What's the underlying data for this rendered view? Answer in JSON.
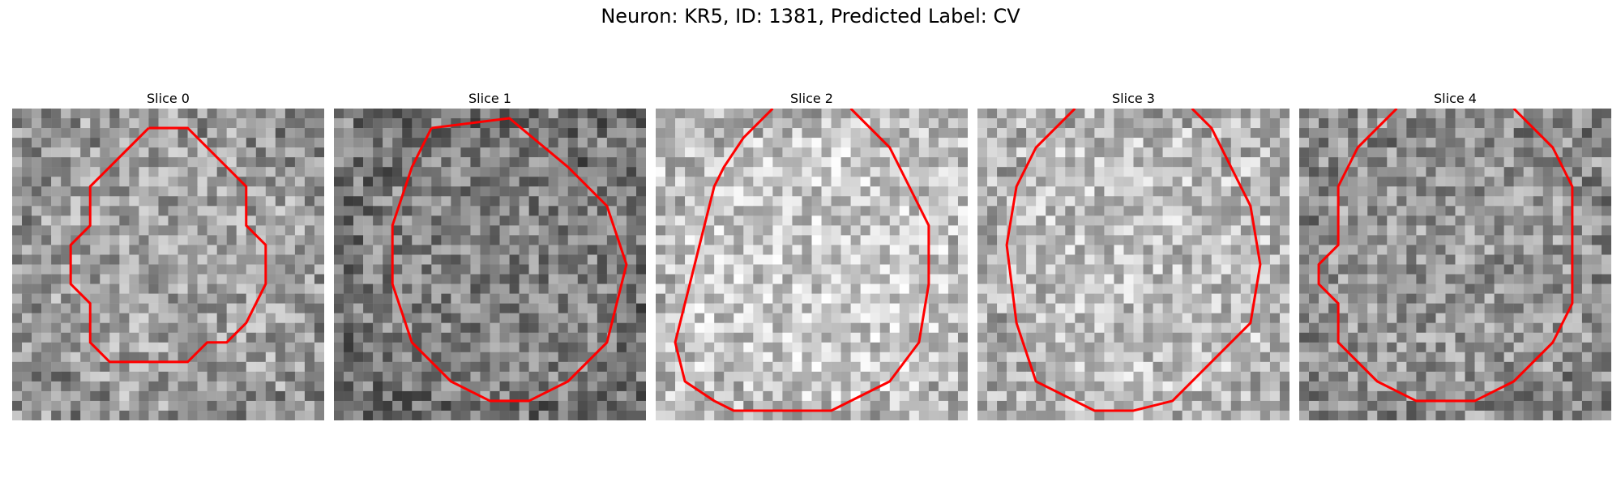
{
  "figure": {
    "title": "Neuron: KR5, ID: 1381, Predicted Label: CV"
  },
  "contour_color": "#ff0000",
  "panels": [
    {
      "title": "Slice 0",
      "seed": 11,
      "base_gray": 160,
      "contour": [
        [
          14,
          2
        ],
        [
          18,
          2
        ],
        [
          22,
          6
        ],
        [
          24,
          8
        ],
        [
          24,
          12
        ],
        [
          26,
          14
        ],
        [
          26,
          18
        ],
        [
          24,
          22
        ],
        [
          22,
          24
        ],
        [
          20,
          24
        ],
        [
          18,
          26
        ],
        [
          10,
          26
        ],
        [
          8,
          24
        ],
        [
          8,
          20
        ],
        [
          6,
          18
        ],
        [
          6,
          14
        ],
        [
          8,
          12
        ],
        [
          8,
          8
        ],
        [
          10,
          6
        ],
        [
          12,
          4
        ],
        [
          14,
          2
        ]
      ]
    },
    {
      "title": "Slice 1",
      "seed": 23,
      "base_gray": 130,
      "contour": [
        [
          10,
          2
        ],
        [
          18,
          1
        ],
        [
          24,
          6
        ],
        [
          28,
          10
        ],
        [
          30,
          16
        ],
        [
          28,
          24
        ],
        [
          24,
          28
        ],
        [
          20,
          30
        ],
        [
          16,
          30
        ],
        [
          12,
          28
        ],
        [
          8,
          24
        ],
        [
          6,
          18
        ],
        [
          6,
          12
        ],
        [
          8,
          6
        ],
        [
          10,
          2
        ]
      ]
    },
    {
      "title": "Slice 2",
      "seed": 37,
      "base_gray": 200,
      "contour": [
        [
          12,
          0
        ],
        [
          9,
          3
        ],
        [
          7,
          6
        ],
        [
          6,
          8
        ],
        [
          5,
          12
        ],
        [
          4,
          16
        ],
        [
          3,
          20
        ],
        [
          2,
          24
        ],
        [
          3,
          28
        ],
        [
          6,
          30
        ],
        [
          8,
          31
        ],
        [
          18,
          31
        ],
        [
          24,
          28
        ],
        [
          27,
          24
        ],
        [
          28,
          18
        ],
        [
          28,
          12
        ],
        [
          26,
          8
        ],
        [
          24,
          4
        ],
        [
          20,
          0
        ]
      ]
    },
    {
      "title": "Slice 3",
      "seed": 53,
      "base_gray": 190,
      "contour": [
        [
          10,
          0
        ],
        [
          6,
          4
        ],
        [
          4,
          8
        ],
        [
          3,
          14
        ],
        [
          4,
          22
        ],
        [
          6,
          28
        ],
        [
          10,
          30
        ],
        [
          12,
          31
        ],
        [
          16,
          31
        ],
        [
          20,
          30
        ],
        [
          24,
          26
        ],
        [
          28,
          22
        ],
        [
          29,
          16
        ],
        [
          28,
          10
        ],
        [
          26,
          6
        ],
        [
          24,
          2
        ],
        [
          22,
          0
        ]
      ]
    },
    {
      "title": "Slice 4",
      "seed": 71,
      "base_gray": 150,
      "contour": [
        [
          10,
          0
        ],
        [
          6,
          4
        ],
        [
          4,
          8
        ],
        [
          4,
          14
        ],
        [
          2,
          16
        ],
        [
          2,
          18
        ],
        [
          4,
          20
        ],
        [
          4,
          24
        ],
        [
          8,
          28
        ],
        [
          12,
          30
        ],
        [
          18,
          30
        ],
        [
          22,
          28
        ],
        [
          26,
          24
        ],
        [
          28,
          20
        ],
        [
          28,
          8
        ],
        [
          26,
          4
        ],
        [
          24,
          2
        ],
        [
          22,
          0
        ]
      ]
    }
  ]
}
